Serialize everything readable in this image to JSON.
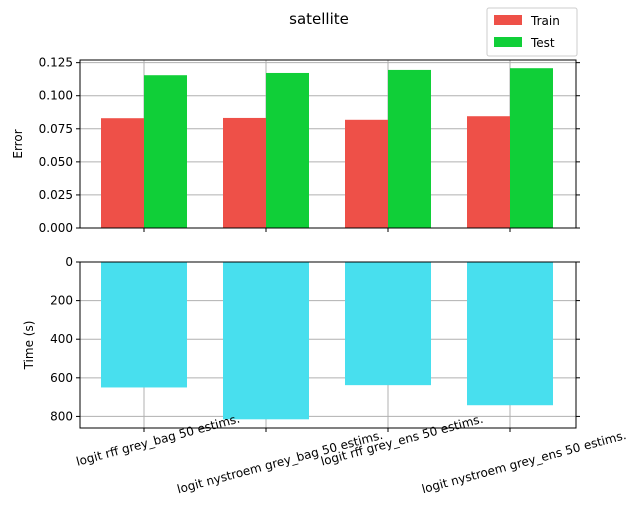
{
  "title": "satellite",
  "colors": {
    "train": "#ee5048",
    "test": "#10cf38",
    "time": "#48dfee",
    "grid": "#b0b0b0"
  },
  "chart_data": [
    {
      "type": "bar",
      "title": "satellite",
      "ylabel": "Error",
      "categories": [
        "logit rff grey_bag 50 estims.",
        "logit nystroem grey_bag 50 estims.",
        "logit rff grey_ens 50 estims.",
        "logit nystroem grey_ens 50 estims."
      ],
      "series": [
        {
          "name": "Train",
          "values": [
            0.083,
            0.0832,
            0.0818,
            0.0845
          ]
        },
        {
          "name": "Test",
          "values": [
            0.1155,
            0.1172,
            0.1195,
            0.1208
          ]
        }
      ],
      "ylim": [
        0,
        0.127
      ],
      "yticks": [
        "0.000",
        "0.025",
        "0.050",
        "0.075",
        "0.100",
        "0.125"
      ],
      "ytick_values": [
        0,
        0.025,
        0.05,
        0.075,
        0.1,
        0.125
      ],
      "grid": true,
      "legend": "top-right"
    },
    {
      "type": "bar",
      "ylabel": "Time (s)",
      "categories": [
        "logit rff grey_bag 50 estims.",
        "logit nystroem grey_bag 50 estims.",
        "logit rff grey_ens 50 estims.",
        "logit nystroem grey_ens 50 estims."
      ],
      "values": [
        650,
        815,
        638,
        742
      ],
      "ylim": [
        860,
        0
      ],
      "inverted_y": true,
      "yticks": [
        "0",
        "200",
        "400",
        "600",
        "800"
      ],
      "ytick_values": [
        0,
        200,
        400,
        600,
        800
      ],
      "grid": true
    }
  ]
}
